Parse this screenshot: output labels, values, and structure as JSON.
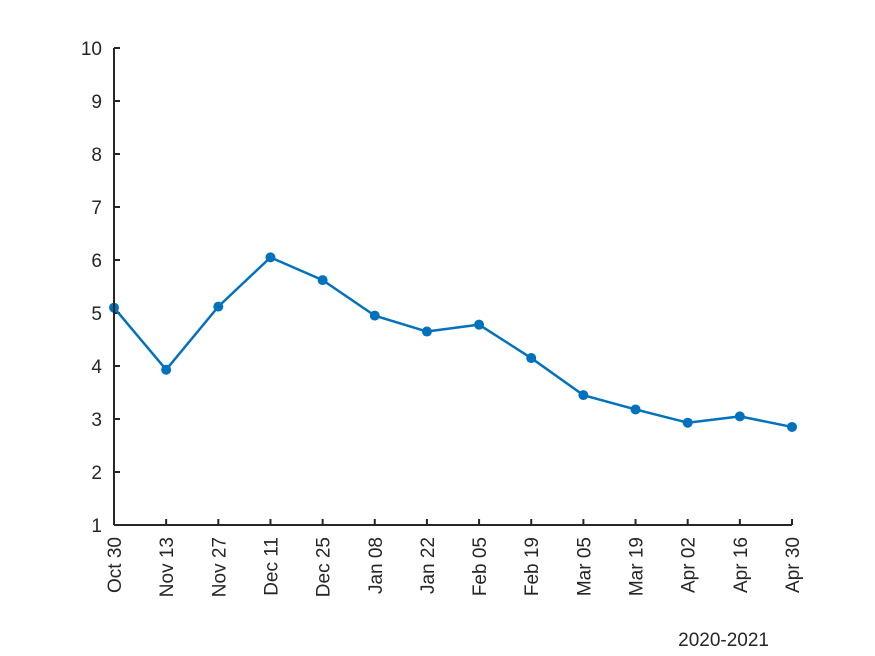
{
  "chart_data": {
    "type": "line",
    "title": "",
    "xlabel": "",
    "ylabel": "",
    "x_axis_note": "2020-2021",
    "categories": [
      "Oct 30",
      "Nov 13",
      "Nov 27",
      "Dec 11",
      "Dec 25",
      "Jan 08",
      "Jan 22",
      "Feb 05",
      "Feb 19",
      "Mar 05",
      "Mar 19",
      "Apr 02",
      "Apr 16",
      "Apr 30"
    ],
    "series": [
      {
        "values": [
          5.1,
          3.93,
          5.12,
          6.05,
          5.62,
          4.95,
          4.65,
          4.78,
          4.15,
          3.45,
          3.18,
          2.93,
          3.05,
          2.85
        ],
        "color": "#0072BD",
        "marker": "circle"
      }
    ],
    "ylim": [
      1,
      10
    ],
    "yticks": [
      1,
      2,
      3,
      4,
      5,
      6,
      7,
      8,
      9,
      10
    ],
    "grid": false,
    "legend": "none"
  }
}
